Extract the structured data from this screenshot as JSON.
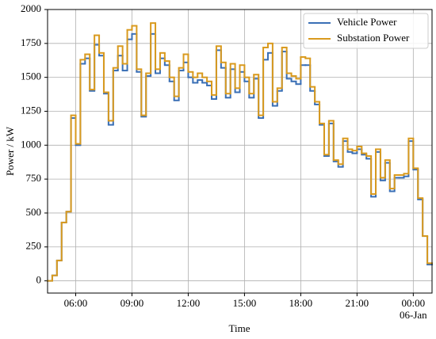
{
  "chart_data": {
    "type": "step",
    "x_label": "Time",
    "y_label": "Power / kW",
    "x": [
      4.5,
      4.75,
      5,
      5.25,
      5.5,
      5.75,
      6,
      6.25,
      6.5,
      6.75,
      7,
      7.25,
      7.5,
      7.75,
      8,
      8.25,
      8.5,
      8.75,
      9,
      9.25,
      9.5,
      9.75,
      10,
      10.25,
      10.5,
      10.75,
      11,
      11.25,
      11.5,
      11.75,
      12,
      12.25,
      12.5,
      12.75,
      13,
      13.25,
      13.5,
      13.75,
      14,
      14.25,
      14.5,
      14.75,
      15,
      15.25,
      15.5,
      15.75,
      16,
      16.25,
      16.5,
      16.75,
      17,
      17.25,
      17.5,
      17.75,
      18,
      18.25,
      18.5,
      18.75,
      19,
      19.25,
      19.5,
      19.75,
      20,
      20.25,
      20.5,
      20.75,
      21,
      21.25,
      21.5,
      21.75,
      22,
      22.25,
      22.5,
      22.75,
      23,
      23.25,
      23.5,
      23.75,
      24,
      24.25,
      24.5,
      24.75
    ],
    "series": [
      {
        "name": "Vehicle Power",
        "color": "#3a6fb5",
        "values": [
          0,
          40,
          150,
          430,
          510,
          1200,
          1000,
          1600,
          1640,
          1400,
          1740,
          1660,
          1380,
          1150,
          1550,
          1660,
          1550,
          1780,
          1820,
          1540,
          1210,
          1510,
          1820,
          1530,
          1640,
          1590,
          1470,
          1330,
          1550,
          1610,
          1500,
          1460,
          1480,
          1460,
          1440,
          1340,
          1700,
          1570,
          1350,
          1560,
          1390,
          1540,
          1470,
          1350,
          1490,
          1200,
          1630,
          1680,
          1290,
          1400,
          1690,
          1490,
          1470,
          1450,
          1590,
          1590,
          1400,
          1300,
          1150,
          920,
          1160,
          880,
          840,
          1030,
          950,
          940,
          970,
          930,
          900,
          620,
          950,
          740,
          870,
          660,
          760,
          760,
          770,
          1030,
          820,
          600,
          330,
          120
        ]
      },
      {
        "name": "Substation Power",
        "color": "#d99a1e",
        "values": [
          0,
          40,
          150,
          430,
          510,
          1220,
          1010,
          1630,
          1670,
          1410,
          1810,
          1680,
          1390,
          1180,
          1570,
          1730,
          1600,
          1850,
          1880,
          1560,
          1220,
          1530,
          1900,
          1560,
          1680,
          1620,
          1500,
          1360,
          1570,
          1670,
          1540,
          1500,
          1530,
          1500,
          1470,
          1370,
          1730,
          1610,
          1380,
          1600,
          1420,
          1590,
          1500,
          1380,
          1520,
          1220,
          1720,
          1750,
          1320,
          1420,
          1720,
          1530,
          1510,
          1490,
          1650,
          1640,
          1430,
          1320,
          1160,
          930,
          1180,
          890,
          860,
          1050,
          970,
          960,
          990,
          940,
          920,
          640,
          970,
          760,
          890,
          680,
          780,
          780,
          790,
          1050,
          830,
          610,
          330,
          130
        ]
      }
    ],
    "xlim": [
      4.5,
      25
    ],
    "ylim": [
      -90,
      2000
    ],
    "xticks": [
      {
        "value": 6,
        "label": "06:00"
      },
      {
        "value": 9,
        "label": "09:00"
      },
      {
        "value": 12,
        "label": "12:00"
      },
      {
        "value": 15,
        "label": "15:00"
      },
      {
        "value": 18,
        "label": "18:00"
      },
      {
        "value": 21,
        "label": "21:00"
      },
      {
        "value": 24,
        "label": "00:00\n06-Jan"
      }
    ],
    "yticks": [
      0,
      250,
      500,
      750,
      1000,
      1250,
      1500,
      1750,
      2000
    ],
    "grid": true,
    "legend": "upper right"
  }
}
